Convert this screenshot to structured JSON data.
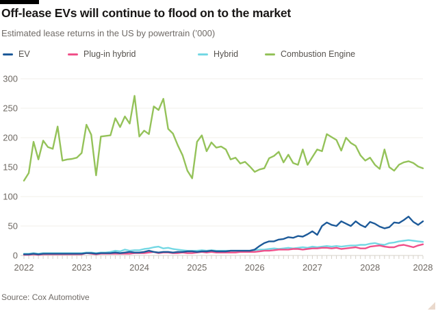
{
  "header": {
    "title": "Off-lease EVs will continue to flood on to the market",
    "subtitle": "Estimated lease returns in the US by powertrain (’000)"
  },
  "legend": {
    "items": [
      {
        "label": "EV"
      },
      {
        "label": "Plug-in hybrid"
      },
      {
        "label": "Hybrid"
      },
      {
        "label": "Combustion Engine"
      }
    ]
  },
  "source": "Source: Cox Automotive",
  "colors": {
    "ev": "#1d5a99",
    "plug_in_hybrid": "#f0508a",
    "hybrid": "#74d8e4",
    "combustion_engine": "#94c259",
    "grid_minor": "#f2efe9",
    "axis_line": "#d6d0c8",
    "axis_text": "#6e6862"
  },
  "chart_data": {
    "type": "line",
    "title": "Off-lease EVs will continue to flood on to the market",
    "subtitle": "Estimated lease returns in the US by powertrain ('000)",
    "x_unit": "month",
    "x_range": [
      "2022-01",
      "2028-12"
    ],
    "ylim": [
      0,
      300
    ],
    "y_ticks": [
      0,
      50,
      100,
      150,
      200,
      250,
      300
    ],
    "grid": true,
    "legend_position": "top",
    "x_ticks": [
      {
        "month": 0,
        "label": "2022"
      },
      {
        "month": 12,
        "label": "2023"
      },
      {
        "month": 24,
        "label": "2024"
      },
      {
        "month": 36,
        "label": "2025"
      },
      {
        "month": 48,
        "label": "2026"
      },
      {
        "month": 60,
        "label": "2027"
      },
      {
        "month": 72,
        "label": "2028"
      },
      {
        "month": 83,
        "label": "2028"
      }
    ],
    "series": [
      {
        "name": "EV",
        "color": "#1d5a99",
        "values": [
          2,
          2,
          3,
          2,
          3,
          3,
          3,
          3,
          3,
          3,
          3,
          3,
          3,
          4,
          4,
          3,
          4,
          4,
          4,
          5,
          4,
          5,
          6,
          5,
          5,
          6,
          8,
          6,
          5,
          6,
          6,
          5,
          6,
          6,
          7,
          7,
          6,
          7,
          7,
          8,
          7,
          7,
          7,
          8,
          8,
          8,
          8,
          8,
          10,
          16,
          21,
          24,
          24,
          27,
          28,
          31,
          30,
          33,
          32,
          36,
          41,
          35,
          50,
          56,
          52,
          50,
          58,
          54,
          50,
          58,
          52,
          48,
          57,
          54,
          49,
          46,
          48,
          56,
          55,
          60,
          66,
          57,
          52,
          58
        ]
      },
      {
        "name": "Plug-in hybrid",
        "color": "#f0508a",
        "values": [
          1,
          1,
          2,
          1,
          2,
          2,
          2,
          2,
          2,
          2,
          2,
          2,
          2,
          4,
          3,
          2,
          3,
          3,
          3,
          3,
          3,
          3,
          3,
          4,
          4,
          4,
          5,
          6,
          4,
          5,
          5,
          4,
          4,
          5,
          4,
          4,
          5,
          6,
          5,
          6,
          5,
          5,
          5,
          5,
          5,
          6,
          6,
          6,
          6,
          7,
          8,
          8,
          9,
          10,
          10,
          10,
          11,
          11,
          10,
          11,
          12,
          12,
          13,
          13,
          12,
          13,
          11,
          12,
          13,
          14,
          12,
          12,
          15,
          16,
          17,
          15,
          14,
          14,
          17,
          18,
          16,
          14,
          17,
          19
        ]
      },
      {
        "name": "Hybrid",
        "color": "#74d8e4",
        "values": [
          3,
          3,
          4,
          3,
          4,
          4,
          4,
          4,
          4,
          4,
          4,
          4,
          4,
          5,
          5,
          4,
          5,
          5,
          6,
          8,
          7,
          10,
          8,
          9,
          9,
          11,
          12,
          14,
          15,
          12,
          13,
          11,
          10,
          9,
          8,
          8,
          8,
          9,
          8,
          9,
          8,
          8,
          8,
          8,
          8,
          8,
          8,
          8,
          9,
          10,
          10,
          11,
          12,
          11,
          12,
          13,
          12,
          13,
          14,
          13,
          15,
          14,
          15,
          16,
          15,
          16,
          15,
          16,
          17,
          17,
          18,
          18,
          20,
          21,
          19,
          18,
          21,
          22,
          24,
          25,
          26,
          25,
          24,
          23
        ]
      },
      {
        "name": "Combustion Engine",
        "color": "#94c259",
        "values": [
          127,
          140,
          193,
          163,
          195,
          184,
          181,
          219,
          161,
          163,
          164,
          166,
          174,
          222,
          205,
          136,
          202,
          203,
          204,
          233,
          218,
          236,
          224,
          271,
          202,
          212,
          206,
          253,
          247,
          266,
          215,
          207,
          187,
          170,
          144,
          131,
          193,
          204,
          177,
          192,
          183,
          185,
          180,
          163,
          166,
          156,
          159,
          151,
          142,
          146,
          148,
          165,
          169,
          176,
          158,
          171,
          157,
          154,
          180,
          154,
          167,
          180,
          177,
          206,
          201,
          196,
          178,
          200,
          191,
          186,
          170,
          161,
          166,
          154,
          147,
          180,
          150,
          144,
          154,
          158,
          160,
          157,
          151,
          148
        ]
      }
    ]
  }
}
